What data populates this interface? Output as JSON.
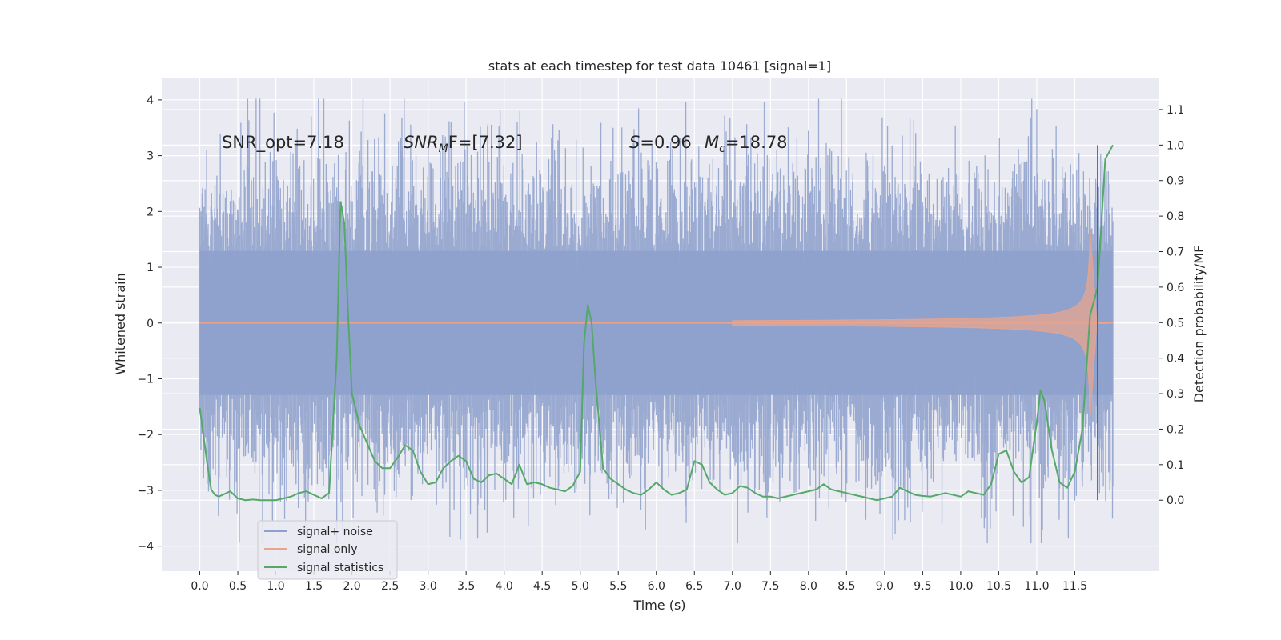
{
  "chart_data": {
    "type": "line",
    "title": "stats at each timestep for test data 10461 [signal=1]",
    "xlabel": "Time (s)",
    "ylabel_left": "Whitened strain",
    "ylabel_right": "Detection probability/MF",
    "xlim": [
      -0.5,
      12.6
    ],
    "ylim_left": [
      -4.45,
      4.4
    ],
    "ylim_right": [
      -0.2,
      1.19
    ],
    "x_ticks": [
      0.0,
      0.5,
      1.0,
      1.5,
      2.0,
      2.5,
      3.0,
      3.5,
      4.0,
      4.5,
      5.0,
      5.5,
      6.0,
      6.5,
      7.0,
      7.5,
      8.0,
      8.5,
      9.0,
      9.5,
      10.0,
      10.5,
      11.0,
      11.5
    ],
    "x_tick_labels": [
      "0.0",
      "0.5",
      "1.0",
      "1.5",
      "2.0",
      "2.5",
      "3.0",
      "3.5",
      "4.0",
      "4.5",
      "5.0",
      "5.5",
      "6.0",
      "6.5",
      "7.0",
      "7.5",
      "8.0",
      "8.5",
      "9.0",
      "9.5",
      "10.0",
      "10.5",
      "11.0",
      "11.5"
    ],
    "y_left_ticks": [
      -4,
      -3,
      -2,
      -1,
      0,
      1,
      2,
      3,
      4
    ],
    "y_left_tick_labels": [
      "−4",
      "−3",
      "−2",
      "−1",
      "0",
      "1",
      "2",
      "3",
      "4"
    ],
    "y_right_ticks": [
      0.0,
      0.1,
      0.2,
      0.3,
      0.4,
      0.5,
      0.6,
      0.7,
      0.8,
      0.9,
      1.0,
      1.1
    ],
    "y_right_tick_labels": [
      "0.0",
      "0.1",
      "0.2",
      "0.3",
      "0.4",
      "0.5",
      "0.6",
      "0.7",
      "0.8",
      "0.9",
      "1.0",
      "1.1"
    ],
    "grid": true,
    "legend_position": "lower-left",
    "annotations": {
      "snr_opt": "SNR_opt=7.18",
      "snr_mf_main": "SNR",
      "snr_mf_sub": "M",
      "snr_mf_rest": "F=[7.32]",
      "s_main": "S",
      "s_rest": "=0.96",
      "mc_main": "M",
      "mc_sub": "c",
      "mc_rest": "=18.78"
    },
    "vertical_marker_x": 11.8,
    "series": [
      {
        "name": "signal+ noise",
        "color": "#8ea1cc",
        "axis": "left",
        "kind": "noise",
        "x_range": [
          0.0,
          12.0
        ],
        "typical_range": [
          -1.9,
          1.9
        ],
        "extreme_range": [
          -3.95,
          4.02
        ]
      },
      {
        "name": "signal only",
        "color": "#e8a48e",
        "axis": "left",
        "kind": "chirp",
        "x_range": [
          7.0,
          11.95
        ],
        "peak_amplitude": 1.75,
        "peak_x": 11.7
      },
      {
        "name": "signal statistics",
        "color": "#55a868",
        "axis": "right",
        "kind": "line",
        "x": [
          0.0,
          0.1,
          0.15,
          0.2,
          0.25,
          0.3,
          0.4,
          0.5,
          0.6,
          0.7,
          0.8,
          0.9,
          1.0,
          1.1,
          1.2,
          1.3,
          1.4,
          1.5,
          1.6,
          1.7,
          1.8,
          1.85,
          1.9,
          1.95,
          2.0,
          2.1,
          2.2,
          2.3,
          2.4,
          2.5,
          2.6,
          2.7,
          2.8,
          2.9,
          3.0,
          3.1,
          3.2,
          3.3,
          3.4,
          3.5,
          3.6,
          3.7,
          3.8,
          3.9,
          4.0,
          4.1,
          4.2,
          4.3,
          4.4,
          4.5,
          4.6,
          4.7,
          4.8,
          4.9,
          5.0,
          5.05,
          5.1,
          5.15,
          5.2,
          5.3,
          5.4,
          5.5,
          5.6,
          5.7,
          5.8,
          5.9,
          6.0,
          6.1,
          6.2,
          6.3,
          6.4,
          6.5,
          6.6,
          6.7,
          6.8,
          6.9,
          7.0,
          7.1,
          7.2,
          7.3,
          7.4,
          7.5,
          7.6,
          7.7,
          7.8,
          7.9,
          8.0,
          8.1,
          8.2,
          8.3,
          8.4,
          8.5,
          8.6,
          8.7,
          8.8,
          8.9,
          9.0,
          9.1,
          9.2,
          9.3,
          9.4,
          9.5,
          9.6,
          9.7,
          9.8,
          9.9,
          10.0,
          10.1,
          10.2,
          10.3,
          10.4,
          10.5,
          10.6,
          10.7,
          10.8,
          10.9,
          11.0,
          11.05,
          11.1,
          11.2,
          11.3,
          11.4,
          11.5,
          11.6,
          11.7,
          11.8,
          11.9,
          12.0
        ],
        "y": [
          0.26,
          0.1,
          0.03,
          0.015,
          0.01,
          0.015,
          0.025,
          0.005,
          0.0,
          0.002,
          0.0,
          0.0,
          0.0,
          0.005,
          0.01,
          0.02,
          0.025,
          0.015,
          0.005,
          0.02,
          0.4,
          0.84,
          0.78,
          0.52,
          0.3,
          0.21,
          0.16,
          0.11,
          0.09,
          0.09,
          0.12,
          0.155,
          0.14,
          0.08,
          0.045,
          0.05,
          0.09,
          0.11,
          0.125,
          0.11,
          0.06,
          0.05,
          0.07,
          0.075,
          0.06,
          0.045,
          0.1,
          0.045,
          0.05,
          0.045,
          0.035,
          0.03,
          0.025,
          0.04,
          0.08,
          0.44,
          0.55,
          0.5,
          0.34,
          0.09,
          0.06,
          0.045,
          0.03,
          0.02,
          0.015,
          0.03,
          0.05,
          0.03,
          0.015,
          0.02,
          0.03,
          0.11,
          0.1,
          0.05,
          0.03,
          0.015,
          0.02,
          0.04,
          0.035,
          0.02,
          0.01,
          0.01,
          0.005,
          0.01,
          0.015,
          0.02,
          0.025,
          0.03,
          0.045,
          0.03,
          0.025,
          0.02,
          0.015,
          0.01,
          0.005,
          0.0,
          0.005,
          0.01,
          0.035,
          0.025,
          0.015,
          0.012,
          0.01,
          0.015,
          0.02,
          0.015,
          0.01,
          0.025,
          0.02,
          0.015,
          0.045,
          0.13,
          0.14,
          0.08,
          0.05,
          0.065,
          0.22,
          0.31,
          0.28,
          0.14,
          0.05,
          0.035,
          0.08,
          0.2,
          0.52,
          0.6,
          0.96,
          1.0
        ]
      }
    ]
  }
}
